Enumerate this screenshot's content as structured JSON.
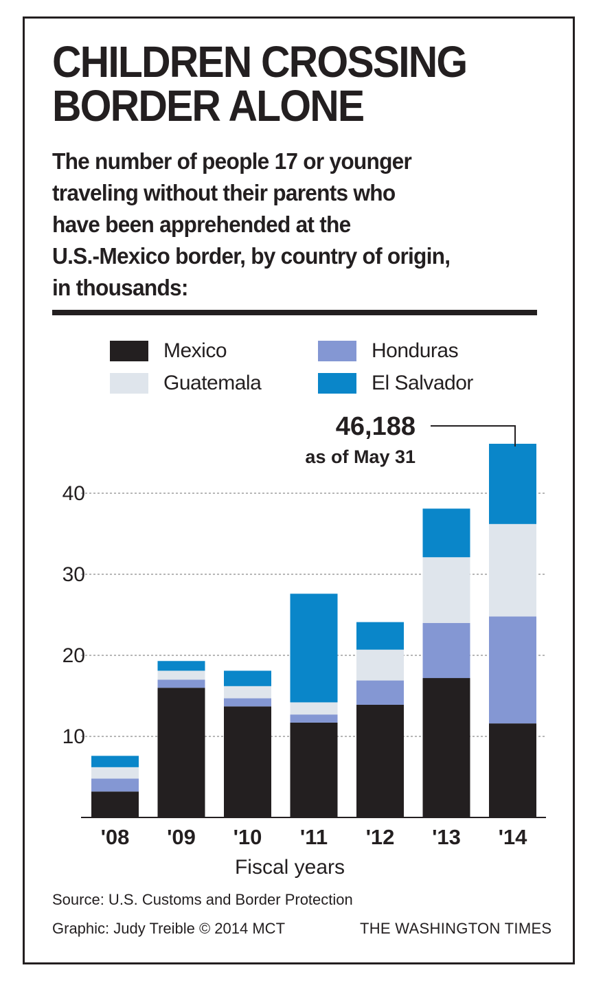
{
  "title_line1": "CHILDREN CROSSING",
  "title_line2": "BORDER ALONE",
  "subtitle_lines": [
    "The number of people 17 or younger",
    "traveling without their parents who",
    "have been apprehended at the",
    "U.S.-Mexico border, by country of origin,",
    "in thousands:"
  ],
  "legend": [
    {
      "label": "Mexico",
      "color": "#231f20"
    },
    {
      "label": "Honduras",
      "color": "#8497d3"
    },
    {
      "label": "Guatemala",
      "color": "#dfe5ec"
    },
    {
      "label": "El Salvador",
      "color": "#0a86c9"
    }
  ],
  "callout": {
    "value": "46,188",
    "note": "as of May 31"
  },
  "xlabel": "Fiscal years",
  "source": "Source: U.S. Customs and Border Protection",
  "credit": "Graphic: Judy Treible  © 2014 MCT",
  "publisher": "THE WASHINGTON TIMES",
  "chart_data": {
    "type": "bar",
    "stacked": true,
    "categories": [
      "'08",
      "'09",
      "'10",
      "'11",
      "'12",
      "'13",
      "'14"
    ],
    "series": [
      {
        "name": "Mexico",
        "color": "#231f20",
        "values": [
          3.2,
          16.0,
          13.7,
          11.7,
          13.9,
          17.2,
          11.6
        ]
      },
      {
        "name": "Honduras",
        "color": "#8497d3",
        "values": [
          1.6,
          1.0,
          1.0,
          1.0,
          3.0,
          6.8,
          13.2
        ]
      },
      {
        "name": "Guatemala",
        "color": "#dfe5ec",
        "values": [
          1.4,
          1.1,
          1.5,
          1.5,
          3.8,
          8.1,
          11.4
        ]
      },
      {
        "name": "El Salvador",
        "color": "#0a86c9",
        "values": [
          1.4,
          1.2,
          1.9,
          13.4,
          3.4,
          6.0,
          9.9
        ]
      }
    ],
    "yticks": [
      10,
      20,
      30,
      40
    ],
    "ylim": [
      0,
      50
    ],
    "grid": true,
    "xlabel": "Fiscal years"
  }
}
